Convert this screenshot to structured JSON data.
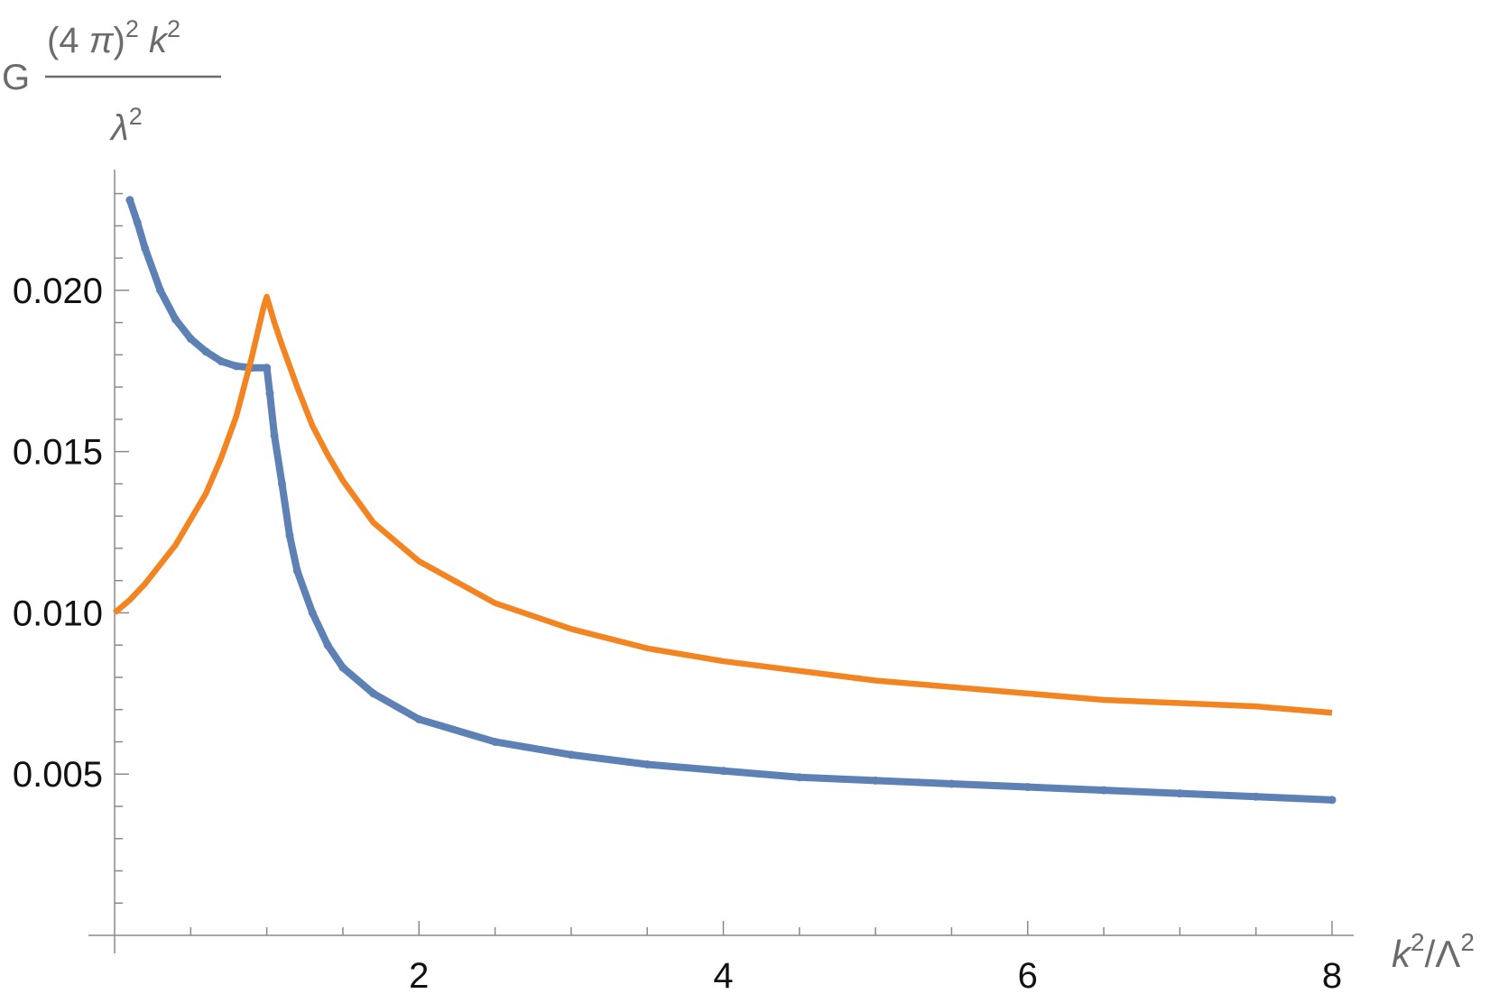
{
  "chart_data": {
    "type": "line",
    "title": "",
    "ylabel": {
      "prefix": "G",
      "numerator": "(4 π)² k²",
      "numerator_parts": [
        "(4 ",
        "π",
        ")",
        "2",
        " ",
        "k",
        "2"
      ],
      "denominator_parts": [
        "λ",
        "2"
      ]
    },
    "xlabel": {
      "text": "k²/Λ²",
      "parts": [
        "k",
        "2",
        "/Λ",
        "2"
      ]
    },
    "xlim": [
      0,
      8.15
    ],
    "ylim": [
      0.0,
      0.0238
    ],
    "x_major_ticks": [
      2,
      4,
      6,
      8
    ],
    "x_major_tick_labels": [
      "2",
      "4",
      "6",
      "8"
    ],
    "x_minor_ticks": [
      0.5,
      1,
      1.5,
      2.5,
      3,
      3.5,
      4.5,
      5,
      5.5,
      6.5,
      7,
      7.5
    ],
    "y_major_ticks": [
      0.005,
      0.01,
      0.015,
      0.02
    ],
    "y_major_tick_labels": [
      "0.005",
      "0.010",
      "0.015",
      "0.020"
    ],
    "y_minor_ticks": [
      0.001,
      0.002,
      0.003,
      0.004,
      0.006,
      0.007,
      0.008,
      0.009,
      0.011,
      0.012,
      0.013,
      0.014,
      0.016,
      0.017,
      0.018,
      0.019,
      0.021,
      0.022,
      0.023
    ],
    "grid": false,
    "legend": "none",
    "series": [
      {
        "color": "#5e81b5",
        "style": "points",
        "x": [
          0.1,
          0.15,
          0.2,
          0.3,
          0.4,
          0.5,
          0.6,
          0.7,
          0.8,
          0.9,
          1.0,
          1.02,
          1.05,
          1.1,
          1.15,
          1.2,
          1.3,
          1.4,
          1.5,
          1.7,
          2.0,
          2.5,
          3.0,
          3.5,
          4.0,
          4.5,
          5.0,
          5.5,
          6.0,
          6.5,
          7.0,
          7.5,
          8.0
        ],
        "y": [
          0.0228,
          0.0221,
          0.0213,
          0.02,
          0.0191,
          0.0185,
          0.0181,
          0.0178,
          0.01765,
          0.0176,
          0.0176,
          0.0168,
          0.0155,
          0.014,
          0.0124,
          0.0113,
          0.01,
          0.009,
          0.0083,
          0.0075,
          0.0067,
          0.006,
          0.0056,
          0.0053,
          0.0051,
          0.0049,
          0.0048,
          0.0047,
          0.0046,
          0.0045,
          0.0044,
          0.0043,
          0.0042
        ]
      },
      {
        "color": "#f28522",
        "style": "line",
        "x": [
          0.0,
          0.1,
          0.2,
          0.3,
          0.4,
          0.5,
          0.6,
          0.7,
          0.8,
          0.9,
          0.95,
          0.98,
          1.0,
          1.05,
          1.1,
          1.2,
          1.3,
          1.4,
          1.5,
          1.7,
          2.0,
          2.5,
          3.0,
          3.5,
          4.0,
          4.5,
          5.0,
          5.5,
          6.0,
          6.5,
          7.0,
          7.5,
          8.0
        ],
        "y": [
          0.01,
          0.0104,
          0.0109,
          0.0115,
          0.0121,
          0.0129,
          0.0137,
          0.0148,
          0.0161,
          0.0179,
          0.0189,
          0.0195,
          0.0198,
          0.019,
          0.0183,
          0.017,
          0.0158,
          0.0149,
          0.0141,
          0.0128,
          0.0116,
          0.0103,
          0.0095,
          0.0089,
          0.0085,
          0.0082,
          0.0079,
          0.0077,
          0.0075,
          0.0073,
          0.0072,
          0.0071,
          0.0069
        ]
      }
    ]
  }
}
